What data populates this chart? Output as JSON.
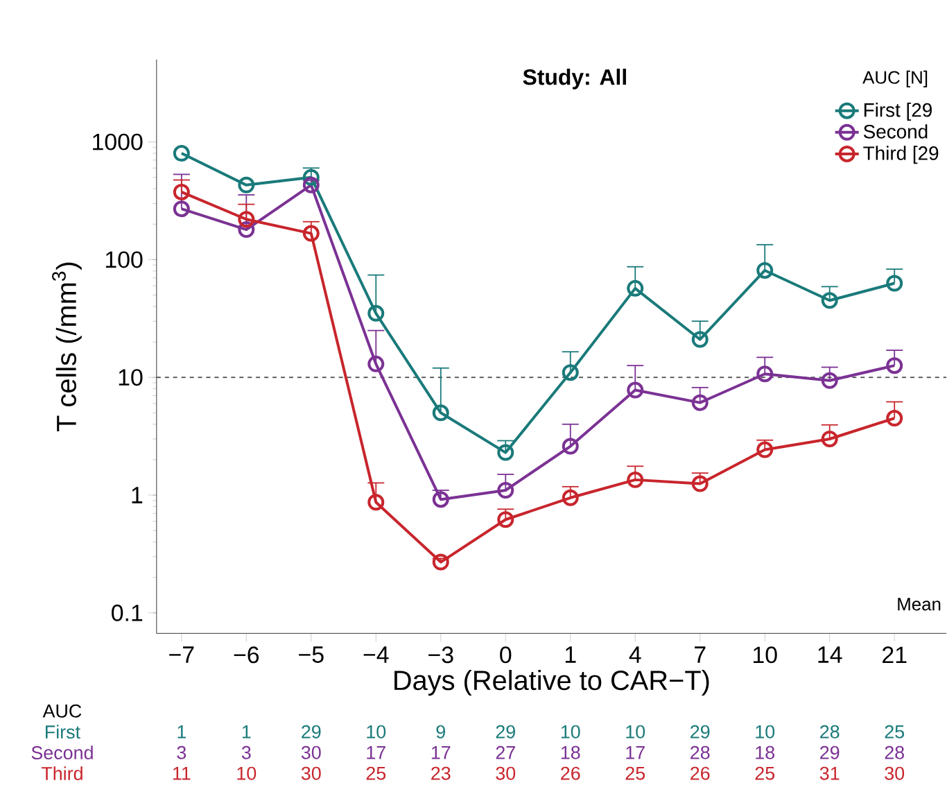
{
  "chart_data": {
    "type": "line",
    "title": "Study: All",
    "xlabel": "Days (Relative to CAR−T)",
    "ylabel": "T cells (/mm$^{3}$)",
    "legend_title": "AUC [N]",
    "categories": [
      "−7",
      "−6",
      "−5",
      "−4",
      "−3",
      "0",
      "1",
      "4",
      "7",
      "10",
      "14",
      "21"
    ],
    "series": [
      {
        "name": "First [29",
        "color": "#1a7a7a",
        "values": [
          800,
          430,
          500,
          35,
          5,
          2.3,
          11,
          57,
          21,
          81,
          45,
          63
        ],
        "errors": [
          null,
          null,
          [
            500,
            600
          ],
          [
            35,
            74
          ],
          [
            5,
            12
          ],
          [
            2.3,
            2.9
          ],
          [
            11,
            16.5
          ],
          [
            57,
            87
          ],
          [
            21,
            30
          ],
          [
            81,
            134
          ],
          [
            45,
            59
          ],
          [
            63,
            83
          ]
        ]
      },
      {
        "name": "Second",
        "color": "#7b3294",
        "values": [
          270,
          180,
          430,
          13,
          0.92,
          1.1,
          2.6,
          7.8,
          6.1,
          10.7,
          9.4,
          12.6
        ],
        "errors": [
          [
            270,
            530
          ],
          [
            180,
            355
          ],
          [
            430,
            470
          ],
          [
            13,
            25
          ],
          [
            0.92,
            1.1
          ],
          [
            1.1,
            1.5
          ],
          [
            2.6,
            4
          ],
          [
            7.8,
            12.6
          ],
          [
            6.1,
            8.2
          ],
          [
            10.7,
            14.8
          ],
          [
            9.4,
            12.2
          ],
          [
            12.6,
            17
          ]
        ]
      },
      {
        "name": "Third [29",
        "color": "#c8252c",
        "values": [
          375,
          220,
          167,
          0.87,
          0.27,
          0.62,
          0.95,
          1.35,
          1.25,
          2.43,
          3.0,
          4.5
        ],
        "errors": [
          [
            375,
            475
          ],
          [
            220,
            295
          ],
          [
            167,
            210
          ],
          [
            0.87,
            1.27
          ],
          [
            0.27,
            0.29
          ],
          [
            0.62,
            0.76
          ],
          [
            0.95,
            1.18
          ],
          [
            1.35,
            1.76
          ],
          [
            1.25,
            1.54
          ],
          [
            2.43,
            2.93
          ],
          [
            3.0,
            3.95
          ],
          [
            4.5,
            6.2
          ]
        ]
      }
    ],
    "ylim": [
      0.067,
      5000
    ],
    "yticks": [
      0.1,
      1,
      10,
      100,
      1000
    ],
    "log": true,
    "legend": "top right",
    "marker": "circle",
    "line_style": "solid",
    "ref_lines": [
      {
        "axis": "y",
        "value": 10,
        "color": "#555555",
        "line_style": "dashed"
      }
    ],
    "annotations": [
      "AUC",
      "First",
      "Second",
      "Third",
      "1",
      "1",
      "29",
      "10",
      "9",
      "29",
      "10",
      "10",
      "29",
      "10",
      "28",
      "25",
      "3",
      "3",
      "30",
      "17",
      "17",
      "27",
      "18",
      "17",
      "28",
      "18",
      "29",
      "28",
      "11",
      "10",
      "30",
      "25",
      "23",
      "30",
      "26",
      "25",
      "26",
      "25",
      "31",
      "30",
      "Mean"
    ]
  }
}
